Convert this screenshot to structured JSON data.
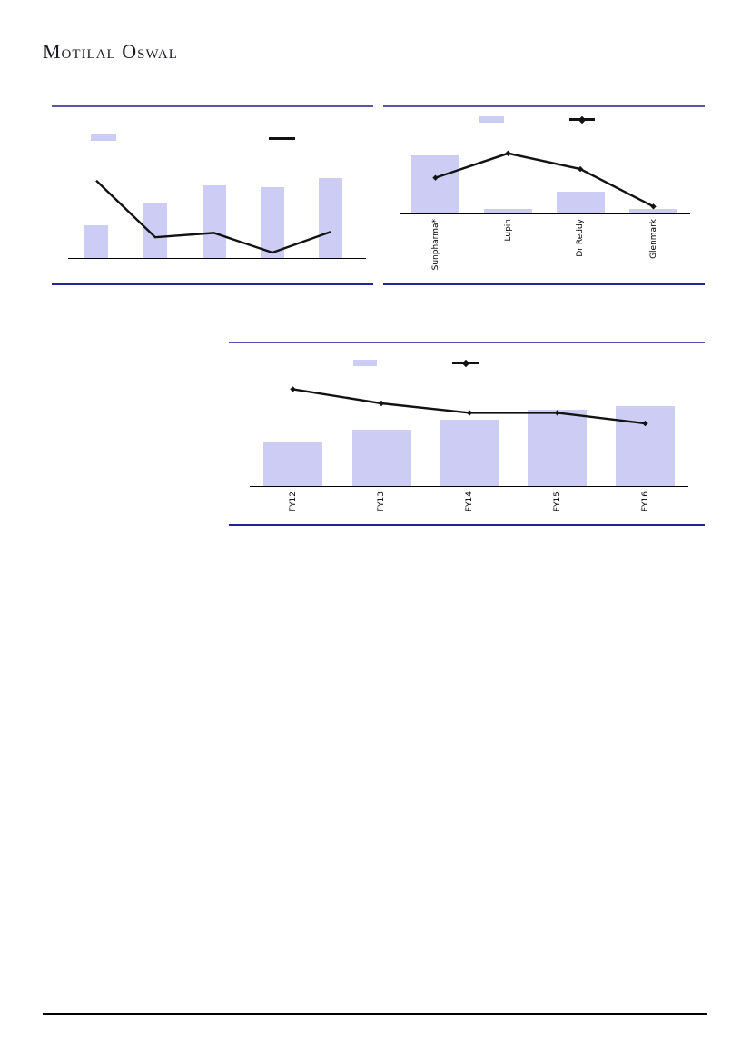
{
  "brand": {
    "name": "Motilal Oswal"
  },
  "colors": {
    "bar_fill": "#ccccf4",
    "line_series": "#121212",
    "panel_rule_top": "#5b53ac",
    "panel_rule_bottom": "#23239b",
    "footer_rule": "#000000"
  },
  "chart_data": [
    {
      "id": "top-left-chart",
      "type": "bar",
      "title": "",
      "legend_position": "top",
      "legend_labels": [
        "",
        ""
      ],
      "grid": false,
      "labels_visible": false,
      "categories": [
        "",
        "",
        "",
        "",
        ""
      ],
      "series": [
        {
          "name": "bars",
          "type": "bar",
          "values": [
            30,
            51,
            67,
            65,
            73
          ]
        },
        {
          "name": "line",
          "type": "line",
          "markers": false,
          "values": [
            71,
            19,
            23,
            5,
            24
          ]
        }
      ],
      "ylim": [
        0,
        100
      ],
      "value_scale": "relative (axis and value labels not rendered in source)"
    },
    {
      "id": "top-right-chart",
      "type": "bar",
      "title": "",
      "legend_position": "top",
      "legend_labels": [
        "",
        ""
      ],
      "grid": false,
      "labels_visible": true,
      "categories": [
        "Sunpharma*",
        "Lupin",
        "Dr Reddy",
        "Glenmark"
      ],
      "series": [
        {
          "name": "bars",
          "type": "bar",
          "values": [
            67,
            5,
            25,
            5
          ]
        },
        {
          "name": "line",
          "type": "line",
          "markers": true,
          "values": [
            41,
            69,
            51,
            8
          ]
        }
      ],
      "ylim": [
        0,
        100
      ],
      "value_scale": "relative (axis and value labels not rendered in source)"
    },
    {
      "id": "middle-chart",
      "type": "bar",
      "title": "",
      "legend_position": "top",
      "legend_labels": [
        "",
        ""
      ],
      "grid": false,
      "labels_visible": true,
      "categories": [
        "FY12",
        "FY13",
        "FY14",
        "FY15",
        "FY16"
      ],
      "series": [
        {
          "name": "bars",
          "type": "bar",
          "values": [
            38,
            48,
            56,
            65,
            68
          ]
        },
        {
          "name": "line",
          "type": "line",
          "markers": true,
          "values": [
            82,
            70,
            62,
            62,
            53
          ]
        }
      ],
      "ylim": [
        0,
        100
      ],
      "value_scale": "relative (axis and value labels not rendered in source)"
    }
  ]
}
